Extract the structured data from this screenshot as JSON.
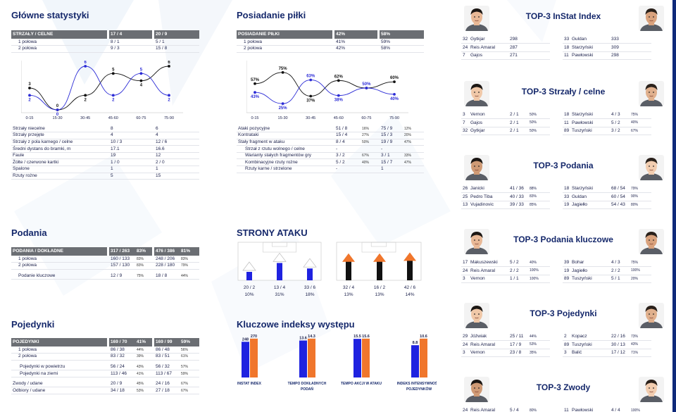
{
  "main_stats": {
    "title": "Główne statystyki",
    "shots_header": [
      "STRZAŁY / CELNE",
      "17 / 4",
      "20 / 9"
    ],
    "half_rows": [
      [
        "1 połowa",
        "8 / 1",
        "5 / 1"
      ],
      [
        "2 połowa",
        "9 / 3",
        "15 / 8"
      ]
    ],
    "detail_rows": [
      [
        "Strzały niecelne",
        "8",
        "6"
      ],
      [
        "Strzały przejęte",
        "4",
        "4"
      ],
      [
        "Strzały z pola karnego / celne",
        "10 / 3",
        "12 / 6"
      ],
      [
        "Średni dystans do bramki, m",
        "17.1",
        "16.6"
      ],
      [
        "Faule",
        "19",
        "12"
      ],
      [
        "Żółte / czerwone kartki",
        "1 / 0",
        "2 / 0"
      ],
      [
        "Spalone",
        "1",
        "1"
      ],
      [
        "Rzuty rożne",
        "5",
        "15"
      ]
    ]
  },
  "shots_chart": {
    "categories": [
      "0-15",
      "15-30",
      "30-45",
      "45-60",
      "60-75",
      "75-90"
    ],
    "series": [
      {
        "color": "#111111",
        "values": [
          3,
          0,
          2,
          5,
          4,
          6
        ]
      },
      {
        "color": "#2b2bd6",
        "values": [
          2,
          0,
          6,
          2,
          5,
          2
        ]
      }
    ]
  },
  "passes": {
    "title": "Podania",
    "rows": [
      {
        "type": "hd",
        "cells": [
          "PODANIA / DOKŁADNE",
          "317 / 263",
          "83%",
          "476 / 386",
          "81%"
        ]
      },
      {
        "type": "in",
        "cells": [
          "1 połowa",
          "160 / 133",
          "83%",
          "248 / 206",
          "83%"
        ]
      },
      {
        "type": "in",
        "cells": [
          "2 połowa",
          "157 / 130",
          "83%",
          "228 / 180",
          "79%"
        ]
      },
      {
        "type": "gap"
      },
      {
        "type": "in",
        "cells": [
          "Podanie kluczowe",
          "12 / 9",
          "75%",
          "18 / 8",
          "44%"
        ]
      }
    ]
  },
  "duels": {
    "title": "Pojedynki",
    "rows": [
      {
        "type": "hd",
        "cells": [
          "POJEDYNKI",
          "169 / 70",
          "41%",
          "169 / 99",
          "59%"
        ]
      },
      {
        "type": "in",
        "cells": [
          "1 połowa",
          "86 / 38",
          "44%",
          "86 / 48",
          "56%"
        ]
      },
      {
        "type": "in",
        "cells": [
          "2 połowa",
          "83 / 32",
          "39%",
          "83 / 51",
          "61%"
        ]
      },
      {
        "type": "gap"
      },
      {
        "type": "ind",
        "cells": [
          "Pojedynki w powietrzu",
          "56 / 24",
          "43%",
          "56 / 32",
          "57%"
        ]
      },
      {
        "type": "ind",
        "cells": [
          "Pojedynki na ziemi",
          "113 / 46",
          "41%",
          "113 / 67",
          "59%"
        ]
      },
      {
        "type": "gap"
      },
      {
        "type": "n",
        "cells": [
          "Zwody / udane",
          "20 / 9",
          "45%",
          "24 / 16",
          "67%"
        ]
      },
      {
        "type": "n",
        "cells": [
          "Odbiory / udane",
          "34 / 18",
          "53%",
          "27 / 18",
          "67%"
        ]
      }
    ]
  },
  "possession": {
    "title": "Posiadanie piłki",
    "header": [
      "POSIADANIE PIŁKI",
      "42%",
      "58%"
    ],
    "half_rows": [
      [
        "1 połowa",
        "41%",
        "59%"
      ],
      [
        "2 połowa",
        "42%",
        "58%"
      ]
    ]
  },
  "possession_chart": {
    "categories": [
      "0-15",
      "15-30",
      "30-45",
      "45-60",
      "60-75",
      "75-90"
    ],
    "series": [
      {
        "color": "#111111",
        "values": [
          57,
          75,
          37,
          62,
          50,
          60
        ],
        "labels": [
          "57%",
          "75%",
          "37%",
          "62%",
          "",
          "60%"
        ]
      },
      {
        "color": "#2b2bd6",
        "values": [
          43,
          25,
          63,
          38,
          50,
          40
        ],
        "labels": [
          "43%",
          "25%",
          "63%",
          "38%",
          "50%",
          "40%"
        ]
      }
    ]
  },
  "attacks": {
    "rows": [
      {
        "type": "n",
        "cells": [
          "Ataki pozycyjne",
          "51 / 8",
          "16%",
          "75 / 9",
          "12%"
        ]
      },
      {
        "type": "n",
        "cells": [
          "Kontrataki",
          "15 / 4",
          "27%",
          "15 / 3",
          "20%"
        ]
      },
      {
        "type": "n",
        "cells": [
          "Stały fragment w ataku",
          "8 / 4",
          "50%",
          "19 / 9",
          "47%"
        ]
      },
      {
        "type": "ind",
        "cells": [
          "Strzał z rzutu wolnego / celne",
          "-",
          "",
          "-",
          ""
        ]
      },
      {
        "type": "ind",
        "cells": [
          "Warianty stałych fragmentów gry",
          "3 / 2",
          "67%",
          "3 / 1",
          "33%"
        ]
      },
      {
        "type": "ind",
        "cells": [
          "Kombinacyjne rzuty rożne",
          "5 / 2",
          "40%",
          "15 / 7",
          "47%"
        ]
      },
      {
        "type": "ind",
        "cells": [
          "Rzuty karne / strzelone",
          "-",
          "",
          "1",
          ""
        ]
      }
    ]
  },
  "attack_sides": {
    "title": "STRONY ATAKU",
    "team1": [
      {
        "count": "20 / 2",
        "pct": "10%",
        "share": 0.1
      },
      {
        "count": "13 / 4",
        "pct": "31%",
        "share": 0.31
      },
      {
        "count": "33 / 6",
        "pct": "18%",
        "share": 0.18
      }
    ],
    "team2": [
      {
        "count": "32 / 4",
        "pct": "13%",
        "share": 0.13
      },
      {
        "count": "16 / 2",
        "pct": "13%",
        "share": 0.13
      },
      {
        "count": "42 / 6",
        "pct": "14%",
        "share": 0.14
      }
    ],
    "colors": {
      "team1": "#1f22e0",
      "team2": "#f0762c",
      "team2_bar": "#111111"
    }
  },
  "key_indexes": {
    "title": "Kluczowe indeksy występu",
    "chart_data": {
      "type": "bar",
      "categories": [
        "INSTAT INDEX",
        "TEMPO DOKŁADNYCH PODAŃ",
        "TEMPO AKCJI W ATAKU",
        "INDEKS INTENSYWNOŚCI POJEDYNKÓW"
      ],
      "category_lines": [
        [
          "INSTAT INDEX"
        ],
        [
          "TEMPO DOKŁADNYCH",
          "PODAŃ"
        ],
        [
          "TEMPO AKCJI W ATAKU"
        ],
        [
          "INDEKS INTENSYWNOŚCI",
          "POJEDYNKÓW"
        ]
      ],
      "series": [
        {
          "color": "#1f22e0",
          "values": [
            248,
            13.6,
            15.5,
            8.8
          ],
          "labels": [
            "248",
            "13.6",
            "15.5",
            "8.8"
          ]
        },
        {
          "color": "#f0762c",
          "values": [
            270,
            14.3,
            15.6,
            10.6
          ],
          "labels": [
            "270",
            "14.3",
            "15.6",
            "10.6"
          ]
        }
      ]
    }
  },
  "top_lists": [
    {
      "title": "TOP-3 InStat Index",
      "left": [
        [
          "32",
          "Gytkjar",
          "298",
          ""
        ],
        [
          "24",
          "Reis Amaral",
          "287",
          ""
        ],
        [
          "7",
          "Gajos",
          "271",
          ""
        ]
      ],
      "right": [
        [
          "33",
          "Guldan",
          "333",
          ""
        ],
        [
          "18",
          "Starzyński",
          "309",
          ""
        ],
        [
          "11",
          "Pawłowski",
          "298",
          ""
        ]
      ]
    },
    {
      "title": "TOP-3 Strzały / celne",
      "left": [
        [
          "3",
          "Vernon",
          "2 / 1",
          "50%"
        ],
        [
          "7",
          "Gajos",
          "2 / 1",
          "50%"
        ],
        [
          "32",
          "Gytkjar",
          "2 / 1",
          "50%"
        ]
      ],
      "right": [
        [
          "18",
          "Starzyński",
          "4 / 3",
          "75%"
        ],
        [
          "11",
          "Pawłowski",
          "5 / 2",
          "40%"
        ],
        [
          "89",
          "Tuszyński",
          "3 / 2",
          "67%"
        ]
      ]
    },
    {
      "title": "TOP-3 Podania",
      "left": [
        [
          "26",
          "Janicki",
          "41 / 36",
          "88%"
        ],
        [
          "25",
          "Pedro Tiba",
          "40 / 33",
          "83%"
        ],
        [
          "13",
          "Vujadinovic",
          "39 / 33",
          "85%"
        ]
      ],
      "right": [
        [
          "18",
          "Starzyński",
          "68 / 54",
          "79%"
        ],
        [
          "33",
          "Guldan",
          "60 / 54",
          "90%"
        ],
        [
          "19",
          "Jagiełło",
          "54 / 43",
          "80%"
        ]
      ]
    },
    {
      "title": "TOP-3 Podania kluczowe",
      "left": [
        [
          "17",
          "Makuszewski",
          "5 / 2",
          "40%"
        ],
        [
          "24",
          "Reis Amaral",
          "2 / 2",
          "100%"
        ],
        [
          "3",
          "Vernon",
          "1 / 1",
          "100%"
        ]
      ],
      "right": [
        [
          "39",
          "Bohar",
          "4 / 3",
          "75%"
        ],
        [
          "19",
          "Jagiełło",
          "2 / 2",
          "100%"
        ],
        [
          "89",
          "Tuszyński",
          "5 / 1",
          "20%"
        ]
      ]
    },
    {
      "title": "TOP-3 Pojedynki",
      "left": [
        [
          "29",
          "Jóźwiak",
          "25 / 11",
          "44%"
        ],
        [
          "24",
          "Reis Amaral",
          "17 / 9",
          "53%"
        ],
        [
          "3",
          "Vernon",
          "23 / 8",
          "35%"
        ]
      ],
      "right": [
        [
          "2",
          "Kopacz",
          "22 / 16",
          "73%"
        ],
        [
          "89",
          "Tuszyński",
          "30 / 13",
          "43%"
        ],
        [
          "3",
          "Balić",
          "17 / 12",
          "71%"
        ]
      ]
    },
    {
      "title": "TOP-3 Zwody",
      "left": [
        [
          "24",
          "Reis Amaral",
          "5 / 4",
          "80%"
        ]
      ],
      "right": [
        [
          "11",
          "Pawłowski",
          "4 / 4",
          "100%"
        ]
      ]
    }
  ]
}
